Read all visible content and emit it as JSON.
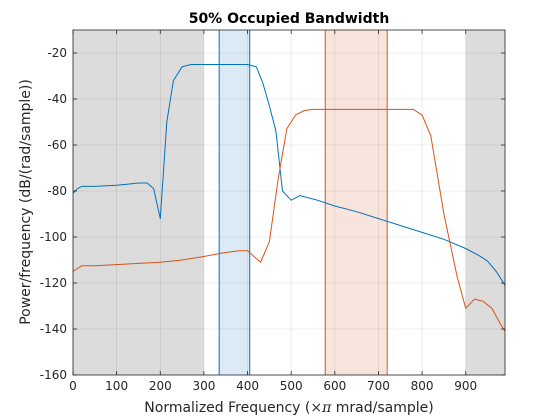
{
  "chart_data": {
    "type": "line",
    "title": "50% Occupied Bandwidth",
    "xlabel_prefix": "Normalized Frequency  (",
    "xlabel_symbol": "×π",
    "xlabel_suffix": " mrad/sample)",
    "ylabel": "Power/frequency (dB/(rad/sample))",
    "xlim": [
      0,
      990
    ],
    "ylim": [
      -160,
      -10
    ],
    "xticks": [
      0,
      100,
      200,
      300,
      400,
      500,
      600,
      700,
      800,
      900
    ],
    "yticks": [
      -160,
      -140,
      -120,
      -100,
      -80,
      -60,
      -40,
      -20
    ],
    "grid": true,
    "shaded_regions": [
      {
        "x0": 0,
        "x1": 300,
        "color": "#dcdcdc"
      },
      {
        "x0": 900,
        "x1": 990,
        "color": "#dcdcdc"
      },
      {
        "x0": 335,
        "x1": 405,
        "color": "#dbeaf4",
        "edge": "#0072bd"
      },
      {
        "x0": 578,
        "x1": 720,
        "color": "#f9e4dd",
        "edge": "#d95319"
      }
    ],
    "series": [
      {
        "color": "#0072bd",
        "x": [
          0,
          10,
          20,
          50,
          100,
          150,
          170,
          185,
          200,
          215,
          230,
          250,
          270,
          300,
          340,
          380,
          400,
          420,
          435,
          450,
          465,
          480,
          500,
          520,
          560,
          600,
          650,
          700,
          750,
          800,
          850,
          900,
          930,
          950,
          970,
          990
        ],
        "y": [
          -81,
          -79,
          -78,
          -78,
          -77.5,
          -76.5,
          -76.5,
          -79,
          -92,
          -50,
          -32,
          -26,
          -25,
          -25,
          -25,
          -25,
          -25,
          -26,
          -33,
          -43,
          -54,
          -80,
          -84,
          -82,
          -84,
          -86.5,
          -89,
          -92,
          -95,
          -98,
          -101,
          -105,
          -108,
          -110.5,
          -115,
          -121
        ]
      },
      {
        "color": "#d95319",
        "x": [
          0,
          20,
          50,
          100,
          150,
          200,
          250,
          300,
          340,
          380,
          400,
          430,
          450,
          470,
          490,
          510,
          530,
          550,
          600,
          650,
          700,
          750,
          780,
          800,
          820,
          850,
          880,
          900,
          920,
          940,
          960,
          980,
          990
        ],
        "y": [
          -115,
          -112.5,
          -112.5,
          -112,
          -111.5,
          -111,
          -110,
          -108.5,
          -107,
          -106,
          -106,
          -111,
          -102,
          -75,
          -53,
          -47,
          -45,
          -44.5,
          -44.5,
          -44.5,
          -44.5,
          -44.5,
          -44.5,
          -47,
          -56,
          -90,
          -117,
          -131,
          -127,
          -128,
          -131,
          -138,
          -141
        ]
      }
    ]
  }
}
